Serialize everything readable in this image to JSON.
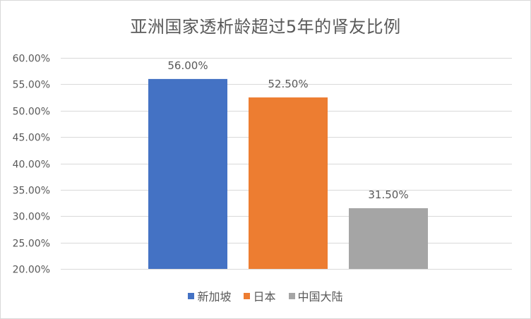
{
  "chart_data": {
    "type": "bar",
    "title": "亚洲国家透析龄超过5年的肾友比例",
    "xlabel": "",
    "ylabel": "",
    "categories": [
      "新加坡",
      "日本",
      "中国大陆"
    ],
    "values": [
      56.0,
      52.5,
      31.5
    ],
    "value_labels": [
      "56.00%",
      "52.50%",
      "31.50%"
    ],
    "colors": [
      "#4472c4",
      "#ed7d31",
      "#a5a5a5"
    ],
    "ylim": [
      20,
      60
    ],
    "y_ticks": [
      60,
      55,
      50,
      45,
      40,
      35,
      30,
      25,
      20
    ],
    "y_tick_labels": [
      "60.00%",
      "55.00%",
      "50.00%",
      "45.00%",
      "40.00%",
      "35.00%",
      "30.00%",
      "25.00%",
      "20.00%"
    ],
    "grid": true,
    "legend_position": "bottom",
    "gridline_color": "#d9d9d9",
    "text_color": "#595959"
  }
}
